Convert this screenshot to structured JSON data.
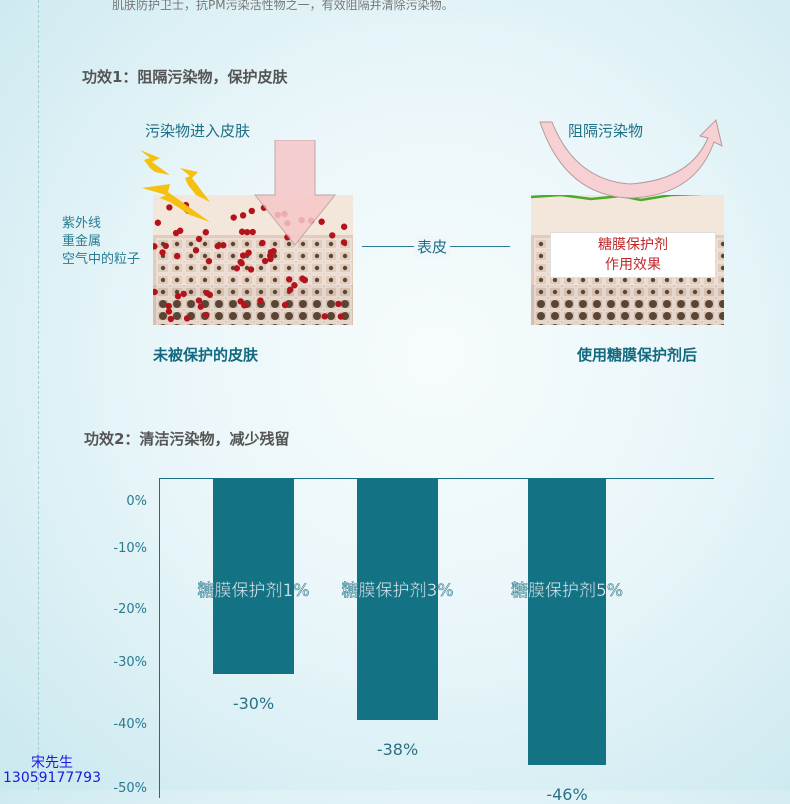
{
  "intro": "肌肤防护卫士，抗PM污染活性物之一，有效阻隔并清除污染物。",
  "section1": {
    "title": "功效1：阻隔污染物，保护皮肤",
    "left": {
      "arrow_label": "污染物进入皮肤",
      "sources": [
        "紫外线",
        "重金属",
        "空气中的粒子"
      ],
      "caption": "未被保护的皮肤"
    },
    "middle_label": "表皮",
    "right": {
      "arrow_label": "阻隔污染物",
      "box": [
        "糖膜保护剂",
        "作用效果"
      ],
      "caption": "使用糖膜保护剂后"
    }
  },
  "section2": {
    "title": "功效2：清洁污染物，减少残留"
  },
  "chart_data": {
    "type": "bar",
    "categories": [
      "糖膜保护剂1%",
      "糖膜保护剂3%",
      "糖膜保护剂5%"
    ],
    "values": [
      -30,
      -38,
      -46
    ],
    "value_labels": [
      "-30%",
      "-38%",
      "-46%"
    ],
    "yticks": [
      "0%",
      "-10%",
      "-20%",
      "-30%",
      "-40%",
      "-50%"
    ],
    "ylim": [
      -50,
      0
    ],
    "color": "#137385"
  },
  "contact": {
    "name": "宋先生",
    "phone": "13059177793"
  }
}
